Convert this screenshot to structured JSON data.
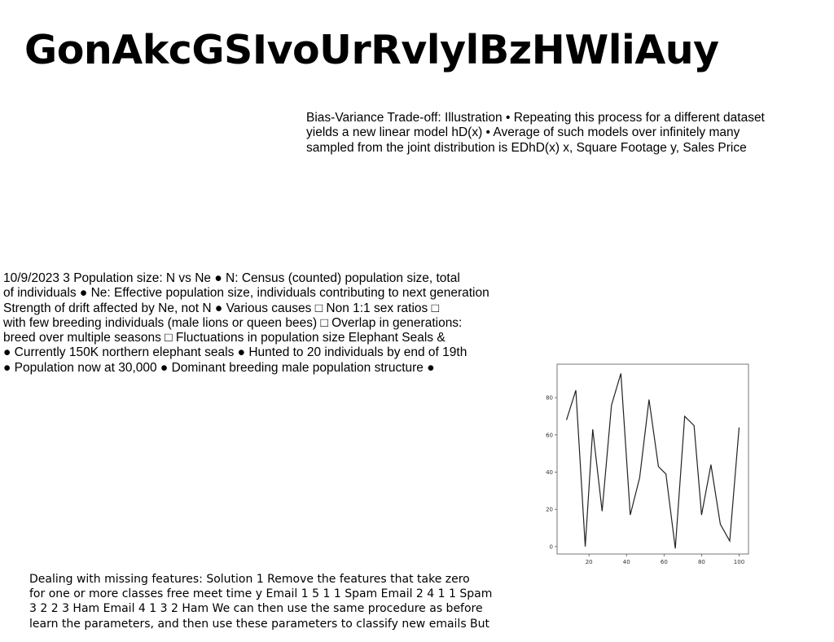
{
  "title": "GonAkcGSIvoUrRvlylBzHWliAuy",
  "block_bias": [
    "Bias-Variance Trade-off: Illustration • Repeating this process for a different dataset",
    "yields a new linear model hD(x) • Average of such models over infinitely many",
    "sampled from the joint distribution is EDhD(x) x, Square Footage y, Sales Price"
  ],
  "block_population": [
    "10/9/2023 3 Population size: N vs Ne ● N: Census (counted) population size, total",
    "of individuals ● Ne: Effective population size, individuals contributing to next generation",
    "Strength of drift affected by Ne, not N ● Various causes □ Non 1:1 sex ratios □",
    "with few breeding individuals (male lions or queen bees) □ Overlap in generations:",
    "breed over multiple seasons □ Fluctuations in population size Elephant Seals &",
    "● Currently 150K northern elephant seals ● Hunted to 20 individuals by end of 19th",
    "● Population now at 30,000 ● Dominant breeding male population structure ●"
  ],
  "block_missing": [
    "Dealing with missing features: Solution 1 Remove the features that take zero",
    "for one or more classes free meet time y Email 1 5 1 1 Spam Email 2 4 1 1 Spam",
    "3 2 2 3 Ham Email 4 1 3 2 Ham We can then use the same procedure as before",
    "learn the parameters, and then use these parameters to classify new emails But"
  ],
  "chart_data": {
    "type": "line",
    "title": "",
    "xlabel": "",
    "ylabel": "",
    "xlim": [
      3,
      105
    ],
    "ylim": [
      -4,
      98
    ],
    "xticks": [
      20,
      40,
      60,
      80,
      100
    ],
    "yticks": [
      0,
      20,
      40,
      60,
      80
    ],
    "grid": false,
    "color": "#222222",
    "x": [
      8,
      13,
      18,
      22,
      27,
      32,
      37,
      42,
      47,
      52,
      57,
      61,
      66,
      71,
      76,
      80,
      85,
      90,
      95,
      100
    ],
    "y": [
      68,
      84,
      0,
      63,
      19,
      76,
      93,
      17,
      37,
      79,
      43,
      39,
      -1,
      70,
      65,
      17,
      44,
      12,
      3,
      64
    ]
  }
}
